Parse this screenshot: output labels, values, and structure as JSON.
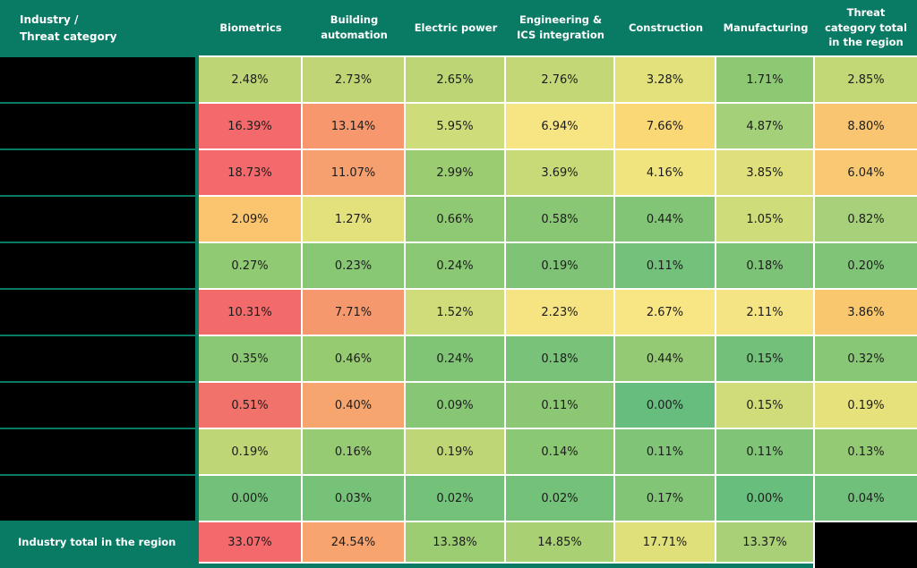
{
  "colors": {
    "teal": "#097a64",
    "grid_line": "#ffffff",
    "redaction_black": "#000000",
    "header_text": "#ffffff",
    "cell_text": "#1c1c1c",
    "scale_low_green": "#63be7b",
    "scale_mid_yellow": "#ffeb84",
    "scale_high_red": "#f8696b"
  },
  "table": {
    "corner_label": "Industry /\nThreat category",
    "columns": [
      "Biometrics",
      "Building automation",
      "Electric power",
      "Engineering & ICS integration",
      "Construction",
      "Manufacturing",
      "Threat category total in the region"
    ],
    "rows": [
      {
        "label": "",
        "redacted": true,
        "cells": [
          {
            "text": "2.48%",
            "color": "#bdd575"
          },
          {
            "text": "2.73%",
            "color": "#c0d676"
          },
          {
            "text": "2.65%",
            "color": "#bcd575"
          },
          {
            "text": "2.76%",
            "color": "#c3d776"
          },
          {
            "text": "3.28%",
            "color": "#e3e17c"
          },
          {
            "text": "1.71%",
            "color": "#8dc973"
          },
          {
            "text": "2.85%",
            "color": "#c2d776"
          }
        ]
      },
      {
        "label": "",
        "redacted": true,
        "cells": [
          {
            "text": "16.39%",
            "color": "#f4696c"
          },
          {
            "text": "13.14%",
            "color": "#f6976e"
          },
          {
            "text": "5.95%",
            "color": "#cedc79"
          },
          {
            "text": "6.94%",
            "color": "#f7e483"
          },
          {
            "text": "7.66%",
            "color": "#fbd876"
          },
          {
            "text": "4.87%",
            "color": "#a4d079"
          },
          {
            "text": "8.80%",
            "color": "#f9c570"
          }
        ]
      },
      {
        "label": "",
        "redacted": true,
        "cells": [
          {
            "text": "18.73%",
            "color": "#f4696c"
          },
          {
            "text": "11.07%",
            "color": "#f6a06f"
          },
          {
            "text": "2.99%",
            "color": "#9ccc72"
          },
          {
            "text": "3.69%",
            "color": "#c8da78"
          },
          {
            "text": "4.16%",
            "color": "#f0e47f"
          },
          {
            "text": "3.85%",
            "color": "#dfe07b"
          },
          {
            "text": "6.04%",
            "color": "#f9c872"
          }
        ]
      },
      {
        "label": "",
        "redacted": true,
        "cells": [
          {
            "text": "2.09%",
            "color": "#fbc46e"
          },
          {
            "text": "1.27%",
            "color": "#e3e17c"
          },
          {
            "text": "0.66%",
            "color": "#90c973"
          },
          {
            "text": "0.58%",
            "color": "#89c775"
          },
          {
            "text": "0.44%",
            "color": "#82c577"
          },
          {
            "text": "1.05%",
            "color": "#cfdc7a"
          },
          {
            "text": "0.82%",
            "color": "#a6d07a"
          }
        ]
      },
      {
        "label": "",
        "redacted": true,
        "cells": [
          {
            "text": "0.27%",
            "color": "#90ca73"
          },
          {
            "text": "0.23%",
            "color": "#88c774"
          },
          {
            "text": "0.24%",
            "color": "#8ac873"
          },
          {
            "text": "0.19%",
            "color": "#7fc476"
          },
          {
            "text": "0.11%",
            "color": "#73c17b"
          },
          {
            "text": "0.18%",
            "color": "#7cc378"
          },
          {
            "text": "0.20%",
            "color": "#80c477"
          }
        ]
      },
      {
        "label": "",
        "redacted": true,
        "cells": [
          {
            "text": "10.31%",
            "color": "#f36a6b"
          },
          {
            "text": "7.71%",
            "color": "#f6986d"
          },
          {
            "text": "1.52%",
            "color": "#cfdc79"
          },
          {
            "text": "2.23%",
            "color": "#f6e482"
          },
          {
            "text": "2.67%",
            "color": "#f8e584"
          },
          {
            "text": "2.11%",
            "color": "#f5e483"
          },
          {
            "text": "3.86%",
            "color": "#f9c76e"
          }
        ]
      },
      {
        "label": "",
        "redacted": true,
        "cells": [
          {
            "text": "0.35%",
            "color": "#8ac873"
          },
          {
            "text": "0.46%",
            "color": "#97cb72"
          },
          {
            "text": "0.24%",
            "color": "#80c476"
          },
          {
            "text": "0.18%",
            "color": "#79c279"
          },
          {
            "text": "0.44%",
            "color": "#94ca74"
          },
          {
            "text": "0.15%",
            "color": "#72c07a"
          },
          {
            "text": "0.32%",
            "color": "#88c775"
          }
        ]
      },
      {
        "label": "",
        "redacted": true,
        "cells": [
          {
            "text": "0.51%",
            "color": "#f1716b"
          },
          {
            "text": "0.40%",
            "color": "#f6a56e"
          },
          {
            "text": "0.09%",
            "color": "#86c675"
          },
          {
            "text": "0.11%",
            "color": "#8cc874"
          },
          {
            "text": "0.00%",
            "color": "#66bd7e"
          },
          {
            "text": "0.15%",
            "color": "#d0db7a"
          },
          {
            "text": "0.19%",
            "color": "#e7e17c"
          }
        ]
      },
      {
        "label": "",
        "redacted": true,
        "cells": [
          {
            "text": "0.19%",
            "color": "#bed676"
          },
          {
            "text": "0.16%",
            "color": "#96cb73"
          },
          {
            "text": "0.19%",
            "color": "#bed676"
          },
          {
            "text": "0.14%",
            "color": "#8bc874"
          },
          {
            "text": "0.11%",
            "color": "#7fc477"
          },
          {
            "text": "0.11%",
            "color": "#80c477"
          },
          {
            "text": "0.13%",
            "color": "#95ca74"
          }
        ]
      },
      {
        "label": "",
        "redacted": true,
        "cells": [
          {
            "text": "0.00%",
            "color": "#72c07a"
          },
          {
            "text": "0.03%",
            "color": "#77c279"
          },
          {
            "text": "0.02%",
            "color": "#74c17a"
          },
          {
            "text": "0.02%",
            "color": "#74c17a"
          },
          {
            "text": "0.17%",
            "color": "#82c577"
          },
          {
            "text": "0.00%",
            "color": "#68be7d"
          },
          {
            "text": "0.04%",
            "color": "#70c07b"
          }
        ]
      }
    ],
    "total_row": {
      "label": "Industry total in the region",
      "cells": [
        {
          "text": "33.07%",
          "color": "#f4696c"
        },
        {
          "text": "24.54%",
          "color": "#f7a46f"
        },
        {
          "text": "13.38%",
          "color": "#9ccd72"
        },
        {
          "text": "14.85%",
          "color": "#a9d073"
        },
        {
          "text": "17.71%",
          "color": "#e0e07b"
        },
        {
          "text": "13.37%",
          "color": "#a9d077"
        },
        {
          "text": "",
          "color": "#000000",
          "redacted": true
        }
      ]
    }
  },
  "chart_data": {
    "type": "heatmap",
    "unit": "percent",
    "title": "",
    "corner_label": "Industry / Threat category",
    "columns": [
      "Biometrics",
      "Building automation",
      "Electric power",
      "Engineering & ICS integration",
      "Construction",
      "Manufacturing",
      "Threat category total in the region"
    ],
    "row_labels": [
      "",
      "",
      "",
      "",
      "",
      "",
      "",
      "",
      "",
      ""
    ],
    "row_labels_redacted": true,
    "values": [
      [
        2.48,
        2.73,
        2.65,
        2.76,
        3.28,
        1.71,
        2.85
      ],
      [
        16.39,
        13.14,
        5.95,
        6.94,
        7.66,
        4.87,
        8.8
      ],
      [
        18.73,
        11.07,
        2.99,
        3.69,
        4.16,
        3.85,
        6.04
      ],
      [
        2.09,
        1.27,
        0.66,
        0.58,
        0.44,
        1.05,
        0.82
      ],
      [
        0.27,
        0.23,
        0.24,
        0.19,
        0.11,
        0.18,
        0.2
      ],
      [
        10.31,
        7.71,
        1.52,
        2.23,
        2.67,
        2.11,
        3.86
      ],
      [
        0.35,
        0.46,
        0.24,
        0.18,
        0.44,
        0.15,
        0.32
      ],
      [
        0.51,
        0.4,
        0.09,
        0.11,
        0.0,
        0.15,
        0.19
      ],
      [
        0.19,
        0.16,
        0.19,
        0.14,
        0.11,
        0.11,
        0.13
      ],
      [
        0.0,
        0.03,
        0.02,
        0.02,
        0.17,
        0.0,
        0.04
      ]
    ],
    "industry_total_row": {
      "label": "Industry total in the region",
      "values": [
        33.07,
        24.54,
        13.38,
        14.85,
        17.71,
        13.37,
        null
      ],
      "last_cell_redacted": true
    },
    "color_scale": {
      "low": "#63be7b",
      "mid": "#ffeb84",
      "high": "#f8696b"
    },
    "legend": "none",
    "grid": "white 2px separators"
  }
}
